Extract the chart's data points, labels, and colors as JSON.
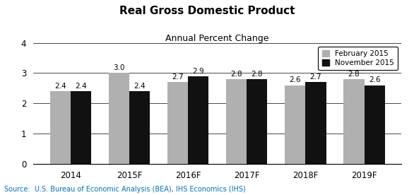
{
  "title": "Real Gross Domestic Product",
  "subtitle": "Annual Percent Change",
  "categories": [
    "2014",
    "2015F",
    "2016F",
    "2017F",
    "2018F",
    "2019F"
  ],
  "february_values": [
    2.4,
    3.0,
    2.7,
    2.8,
    2.6,
    2.8
  ],
  "november_values": [
    2.4,
    2.4,
    2.9,
    2.8,
    2.7,
    2.6
  ],
  "february_color": "#B0B0B0",
  "november_color": "#111111",
  "ylim": [
    0,
    4
  ],
  "yticks": [
    0,
    1,
    2,
    3,
    4
  ],
  "bar_width": 0.35,
  "legend_labels": [
    "February 2015",
    "November 2015"
  ],
  "source_text": "Source:  U.S. Bureau of Economic Analysis (BEA), IHS Economics (IHS)",
  "source_color": "#0070C0",
  "title_fontsize": 11,
  "subtitle_fontsize": 9,
  "label_fontsize": 7.5,
  "tick_fontsize": 8.5,
  "source_fontsize": 7
}
